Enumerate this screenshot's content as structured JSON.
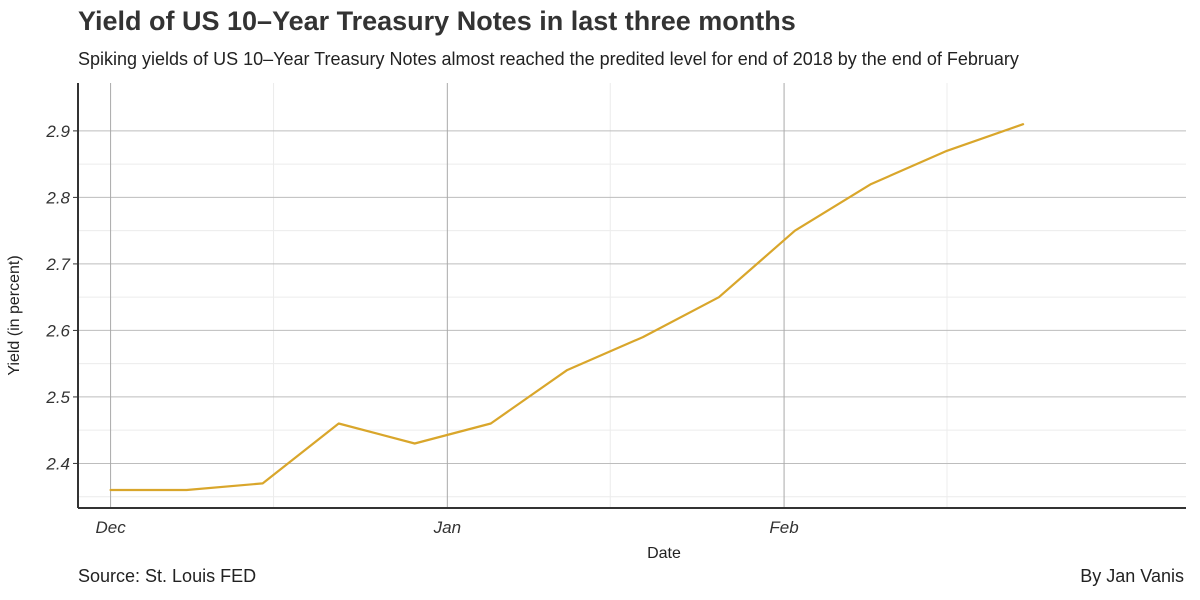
{
  "chart_data": {
    "type": "line",
    "title": "Yield of US 10–Year Treasury Notes in last three months",
    "subtitle": "Spiking yields of US 10–Year Treasury Notes almost reached the predited level for end of 2018 by the end of February",
    "xlabel": "Date",
    "ylabel": "Yield (in percent)",
    "caption_left": "Source: St. Louis FED",
    "caption_right": "By Jan Vanis",
    "x_ticks": [
      {
        "label": "Dec",
        "date": "2017-12-01"
      },
      {
        "label": "Jan",
        "date": "2018-01-01"
      },
      {
        "label": "Feb",
        "date": "2018-02-01"
      }
    ],
    "x_minor_dates": [
      "2017-12-16",
      "2018-01-16",
      "2018-02-16"
    ],
    "xlim": [
      "2017-11-28",
      "2018-03-10"
    ],
    "y_ticks": [
      2.4,
      2.5,
      2.6,
      2.7,
      2.8,
      2.9
    ],
    "ylim": [
      2.333,
      2.972
    ],
    "grid": true,
    "line_color": "#D9A62B",
    "series": [
      {
        "x": [
          "2017-12-01",
          "2017-12-08",
          "2017-12-15",
          "2017-12-22",
          "2017-12-29",
          "2018-01-05",
          "2018-01-12",
          "2018-01-19",
          "2018-01-26",
          "2018-02-02",
          "2018-02-09",
          "2018-02-16",
          "2018-02-23"
        ],
        "values": [
          2.36,
          2.36,
          2.37,
          2.46,
          2.43,
          2.46,
          2.54,
          2.59,
          2.65,
          2.75,
          2.82,
          2.87,
          2.91
        ]
      }
    ]
  }
}
